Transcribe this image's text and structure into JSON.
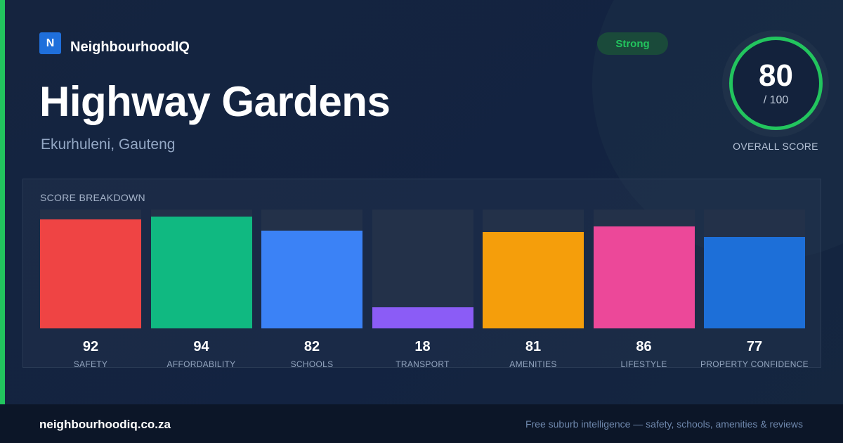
{
  "brand": {
    "logo_letter": "N",
    "name": "NeighbourhoodIQ",
    "logo_color": "#1f6fdb"
  },
  "status_badge": {
    "label": "Strong",
    "color": "#22c55e"
  },
  "suburb": {
    "name": "Highway Gardens",
    "location": "Ekurhuleni, Gauteng"
  },
  "overall_score": {
    "value": "80",
    "max": "/ 100",
    "label": "OVERALL SCORE",
    "ring_color": "#22c55e"
  },
  "breakdown": {
    "title": "SCORE BREAKDOWN",
    "max_value": 100,
    "items": [
      {
        "label": "SAFETY",
        "value": 92,
        "color": "#ef4444"
      },
      {
        "label": "AFFORDABILITY",
        "value": 94,
        "color": "#10b981"
      },
      {
        "label": "SCHOOLS",
        "value": 82,
        "color": "#3b82f6"
      },
      {
        "label": "TRANSPORT",
        "value": 18,
        "color": "#8b5cf6"
      },
      {
        "label": "AMENITIES",
        "value": 81,
        "color": "#f59e0b"
      },
      {
        "label": "LIFESTYLE",
        "value": 86,
        "color": "#ec4899"
      },
      {
        "label": "PROPERTY CONFIDENCE",
        "value": 77,
        "color": "#1d6fd8"
      }
    ]
  },
  "footer": {
    "url": "neighbourhoodiq.co.za",
    "tagline": "Free suburb intelligence — safety, schools, amenities & reviews"
  }
}
